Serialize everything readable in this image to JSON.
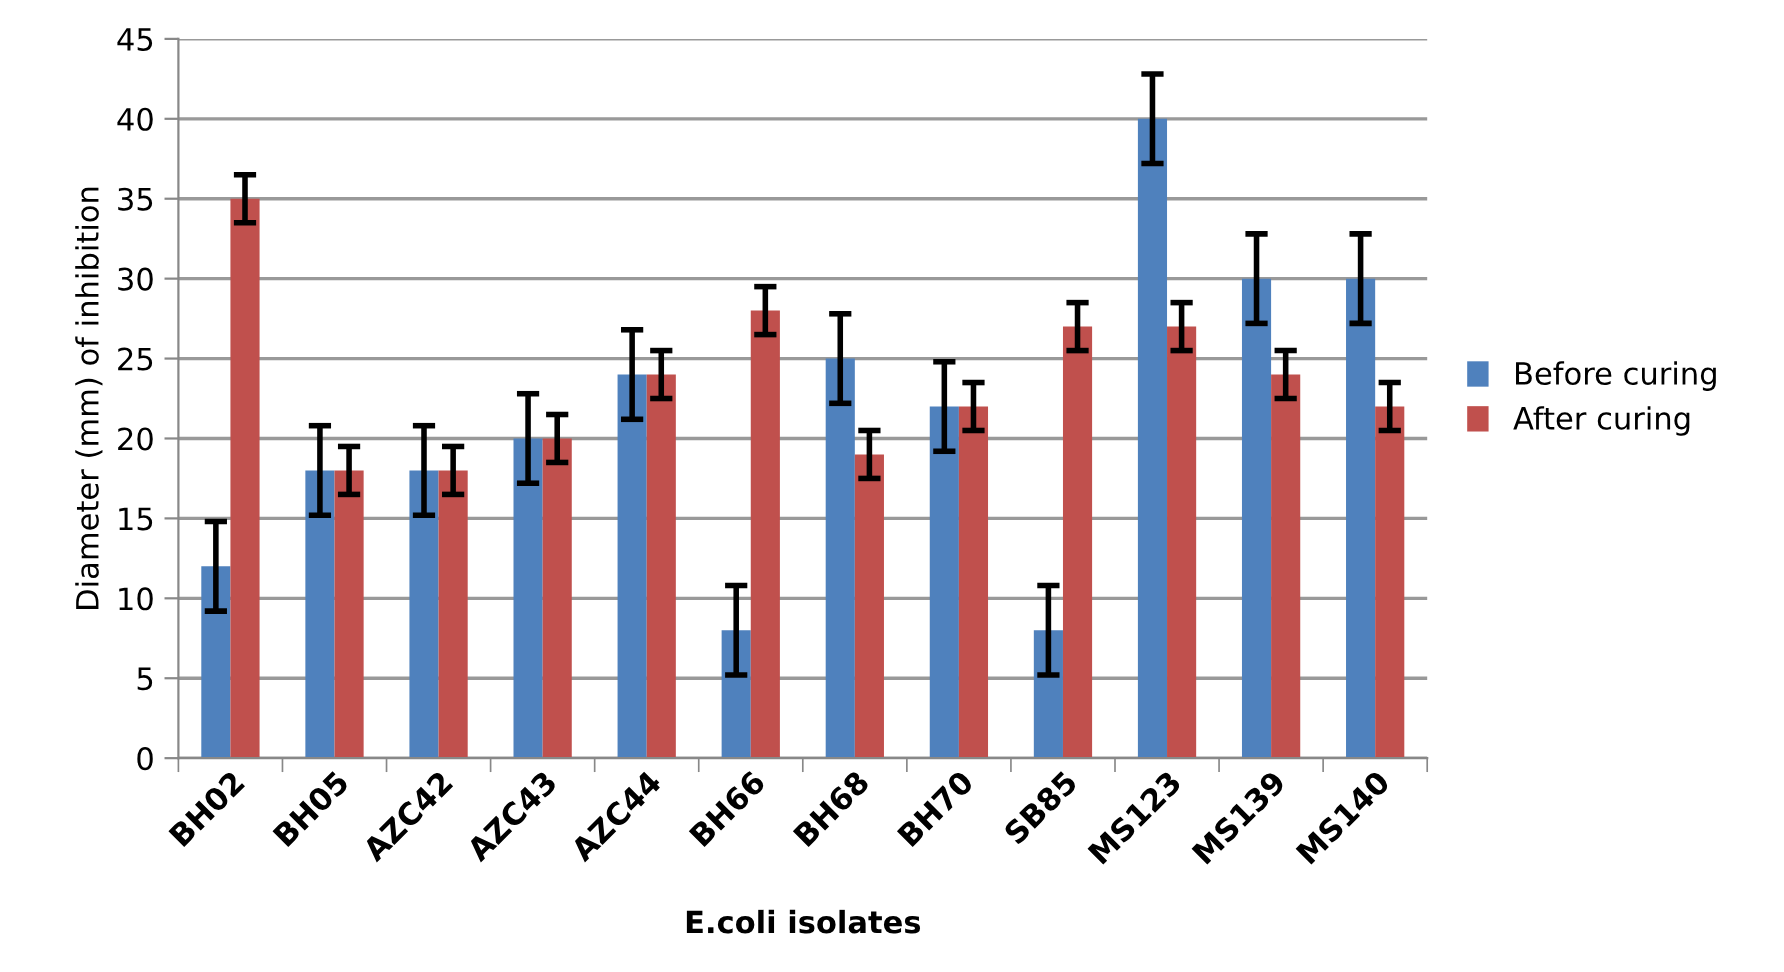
{
  "chart_data": {
    "type": "bar",
    "xlabel": "E.coli isolates",
    "ylabel": "Diameter (mm) of inhibition",
    "categories": [
      "BH02",
      "BH05",
      "AZC42",
      "AZC43",
      "AZC44",
      "BH66",
      "BH68",
      "BH70",
      "SB85",
      "MS123",
      "MS139",
      "MS140"
    ],
    "series": [
      {
        "name": "Before curing",
        "color": "#4f81bd",
        "values": [
          12,
          18,
          18,
          20,
          24,
          8,
          25,
          22,
          8,
          40,
          30,
          30
        ],
        "errors": [
          2.8,
          2.8,
          2.8,
          2.8,
          2.8,
          2.8,
          2.8,
          2.8,
          2.8,
          2.8,
          2.8,
          2.8
        ]
      },
      {
        "name": "After curing",
        "color": "#c0504d",
        "values": [
          35,
          18,
          18,
          20,
          24,
          28,
          19,
          22,
          27,
          27,
          24,
          22
        ],
        "errors": [
          1.5,
          1.5,
          1.5,
          1.5,
          1.5,
          1.5,
          1.5,
          1.5,
          1.5,
          1.5,
          1.5,
          1.5
        ]
      }
    ],
    "ylim": [
      0,
      45
    ],
    "yticks": [
      0,
      5,
      10,
      15,
      20,
      25,
      30,
      35,
      40,
      45
    ],
    "grid": "y",
    "legend": "right"
  }
}
